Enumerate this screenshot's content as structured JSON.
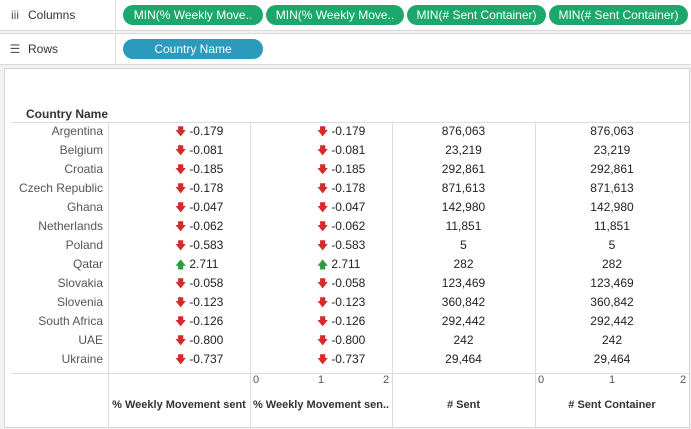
{
  "shelves": {
    "columns_label": "Columns",
    "rows_label": "Rows",
    "columns_pills": [
      "MIN(% Weekly Move..",
      "MIN(% Weekly Move..",
      "MIN(# Sent Container)",
      "MIN(# Sent Container)"
    ],
    "rows_pills": [
      "Country Name"
    ]
  },
  "table": {
    "row_header": "Country Name",
    "rows": [
      {
        "country": "Argentina",
        "w1": "-0.179",
        "w2": "-0.179",
        "s1": "876,063",
        "s2": "876,063",
        "dir": "down"
      },
      {
        "country": "Belgium",
        "w1": "-0.081",
        "w2": "-0.081",
        "s1": "23,219",
        "s2": "23,219",
        "dir": "down"
      },
      {
        "country": "Croatia",
        "w1": "-0.185",
        "w2": "-0.185",
        "s1": "292,861",
        "s2": "292,861",
        "dir": "down"
      },
      {
        "country": "Czech Republic",
        "w1": "-0.178",
        "w2": "-0.178",
        "s1": "871,613",
        "s2": "871,613",
        "dir": "down"
      },
      {
        "country": "Ghana",
        "w1": "-0.047",
        "w2": "-0.047",
        "s1": "142,980",
        "s2": "142,980",
        "dir": "down"
      },
      {
        "country": "Netherlands",
        "w1": "-0.062",
        "w2": "-0.062",
        "s1": "11,851",
        "s2": "11,851",
        "dir": "down"
      },
      {
        "country": "Poland",
        "w1": "-0.583",
        "w2": "-0.583",
        "s1": "5",
        "s2": "5",
        "dir": "down"
      },
      {
        "country": "Qatar",
        "w1": "2.711",
        "w2": "2.711",
        "s1": "282",
        "s2": "282",
        "dir": "up"
      },
      {
        "country": "Slovakia",
        "w1": "-0.058",
        "w2": "-0.058",
        "s1": "123,469",
        "s2": "123,469",
        "dir": "down"
      },
      {
        "country": "Slovenia",
        "w1": "-0.123",
        "w2": "-0.123",
        "s1": "360,842",
        "s2": "360,842",
        "dir": "down"
      },
      {
        "country": "South Africa",
        "w1": "-0.126",
        "w2": "-0.126",
        "s1": "292,442",
        "s2": "292,442",
        "dir": "down"
      },
      {
        "country": "UAE",
        "w1": "-0.800",
        "w2": "-0.800",
        "s1": "242",
        "s2": "242",
        "dir": "down"
      },
      {
        "country": "Ukraine",
        "w1": "-0.737",
        "w2": "-0.737",
        "s1": "29,464",
        "s2": "29,464",
        "dir": "down"
      }
    ],
    "axis_ticks": [
      "0",
      "1",
      "2"
    ],
    "footers": [
      "% Weekly Movement sent",
      "% Weekly Movement sen..",
      "# Sent",
      "# Sent  Container"
    ]
  },
  "icons": {
    "columns_icon": "iii",
    "rows_icon": "☰",
    "arrow_down": "🡇",
    "arrow_up": "🡅"
  },
  "colors": {
    "pill_green": "#1ca86b",
    "pill_blue": "#2b9abc",
    "arrow_down": "#d42a2a",
    "arrow_up": "#2a9d3a"
  }
}
